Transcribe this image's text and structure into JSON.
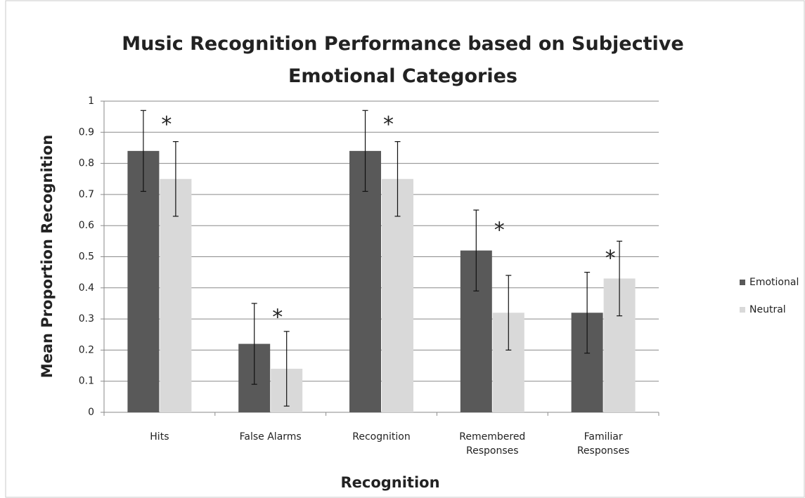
{
  "chart_data": {
    "type": "bar",
    "title": "Music Recognition Performance based on Subjective\nEmotional Categories",
    "x_label": "Recognition",
    "y_label": "Mean Proportion Recognition",
    "categories": [
      "Hits",
      "False Alarms",
      "Recognition",
      "Remembered\nResponses",
      "Familiar\nResponses"
    ],
    "series": [
      {
        "name": "Emotional",
        "color": "#595959",
        "values": [
          0.84,
          0.22,
          0.84,
          0.52,
          0.32
        ],
        "errors": [
          0.13,
          0.13,
          0.13,
          0.13,
          0.13
        ]
      },
      {
        "name": "Neutral",
        "color": "#d9d9d9",
        "values": [
          0.75,
          0.14,
          0.75,
          0.32,
          0.43
        ],
        "errors": [
          0.12,
          0.12,
          0.12,
          0.12,
          0.12
        ]
      }
    ],
    "annotations": [
      {
        "text": "*",
        "y": 0.94
      },
      {
        "text": "*",
        "y": 0.32
      },
      {
        "text": "*",
        "y": 0.94
      },
      {
        "text": "*",
        "y": 0.6
      },
      {
        "text": "*",
        "y": 0.51
      }
    ],
    "ylim": [
      0,
      1
    ],
    "yticks": [
      0,
      0.1,
      0.2,
      0.3,
      0.4,
      0.5,
      0.6,
      0.7,
      0.8,
      0.9,
      1
    ],
    "grid": true,
    "legend": "right"
  }
}
